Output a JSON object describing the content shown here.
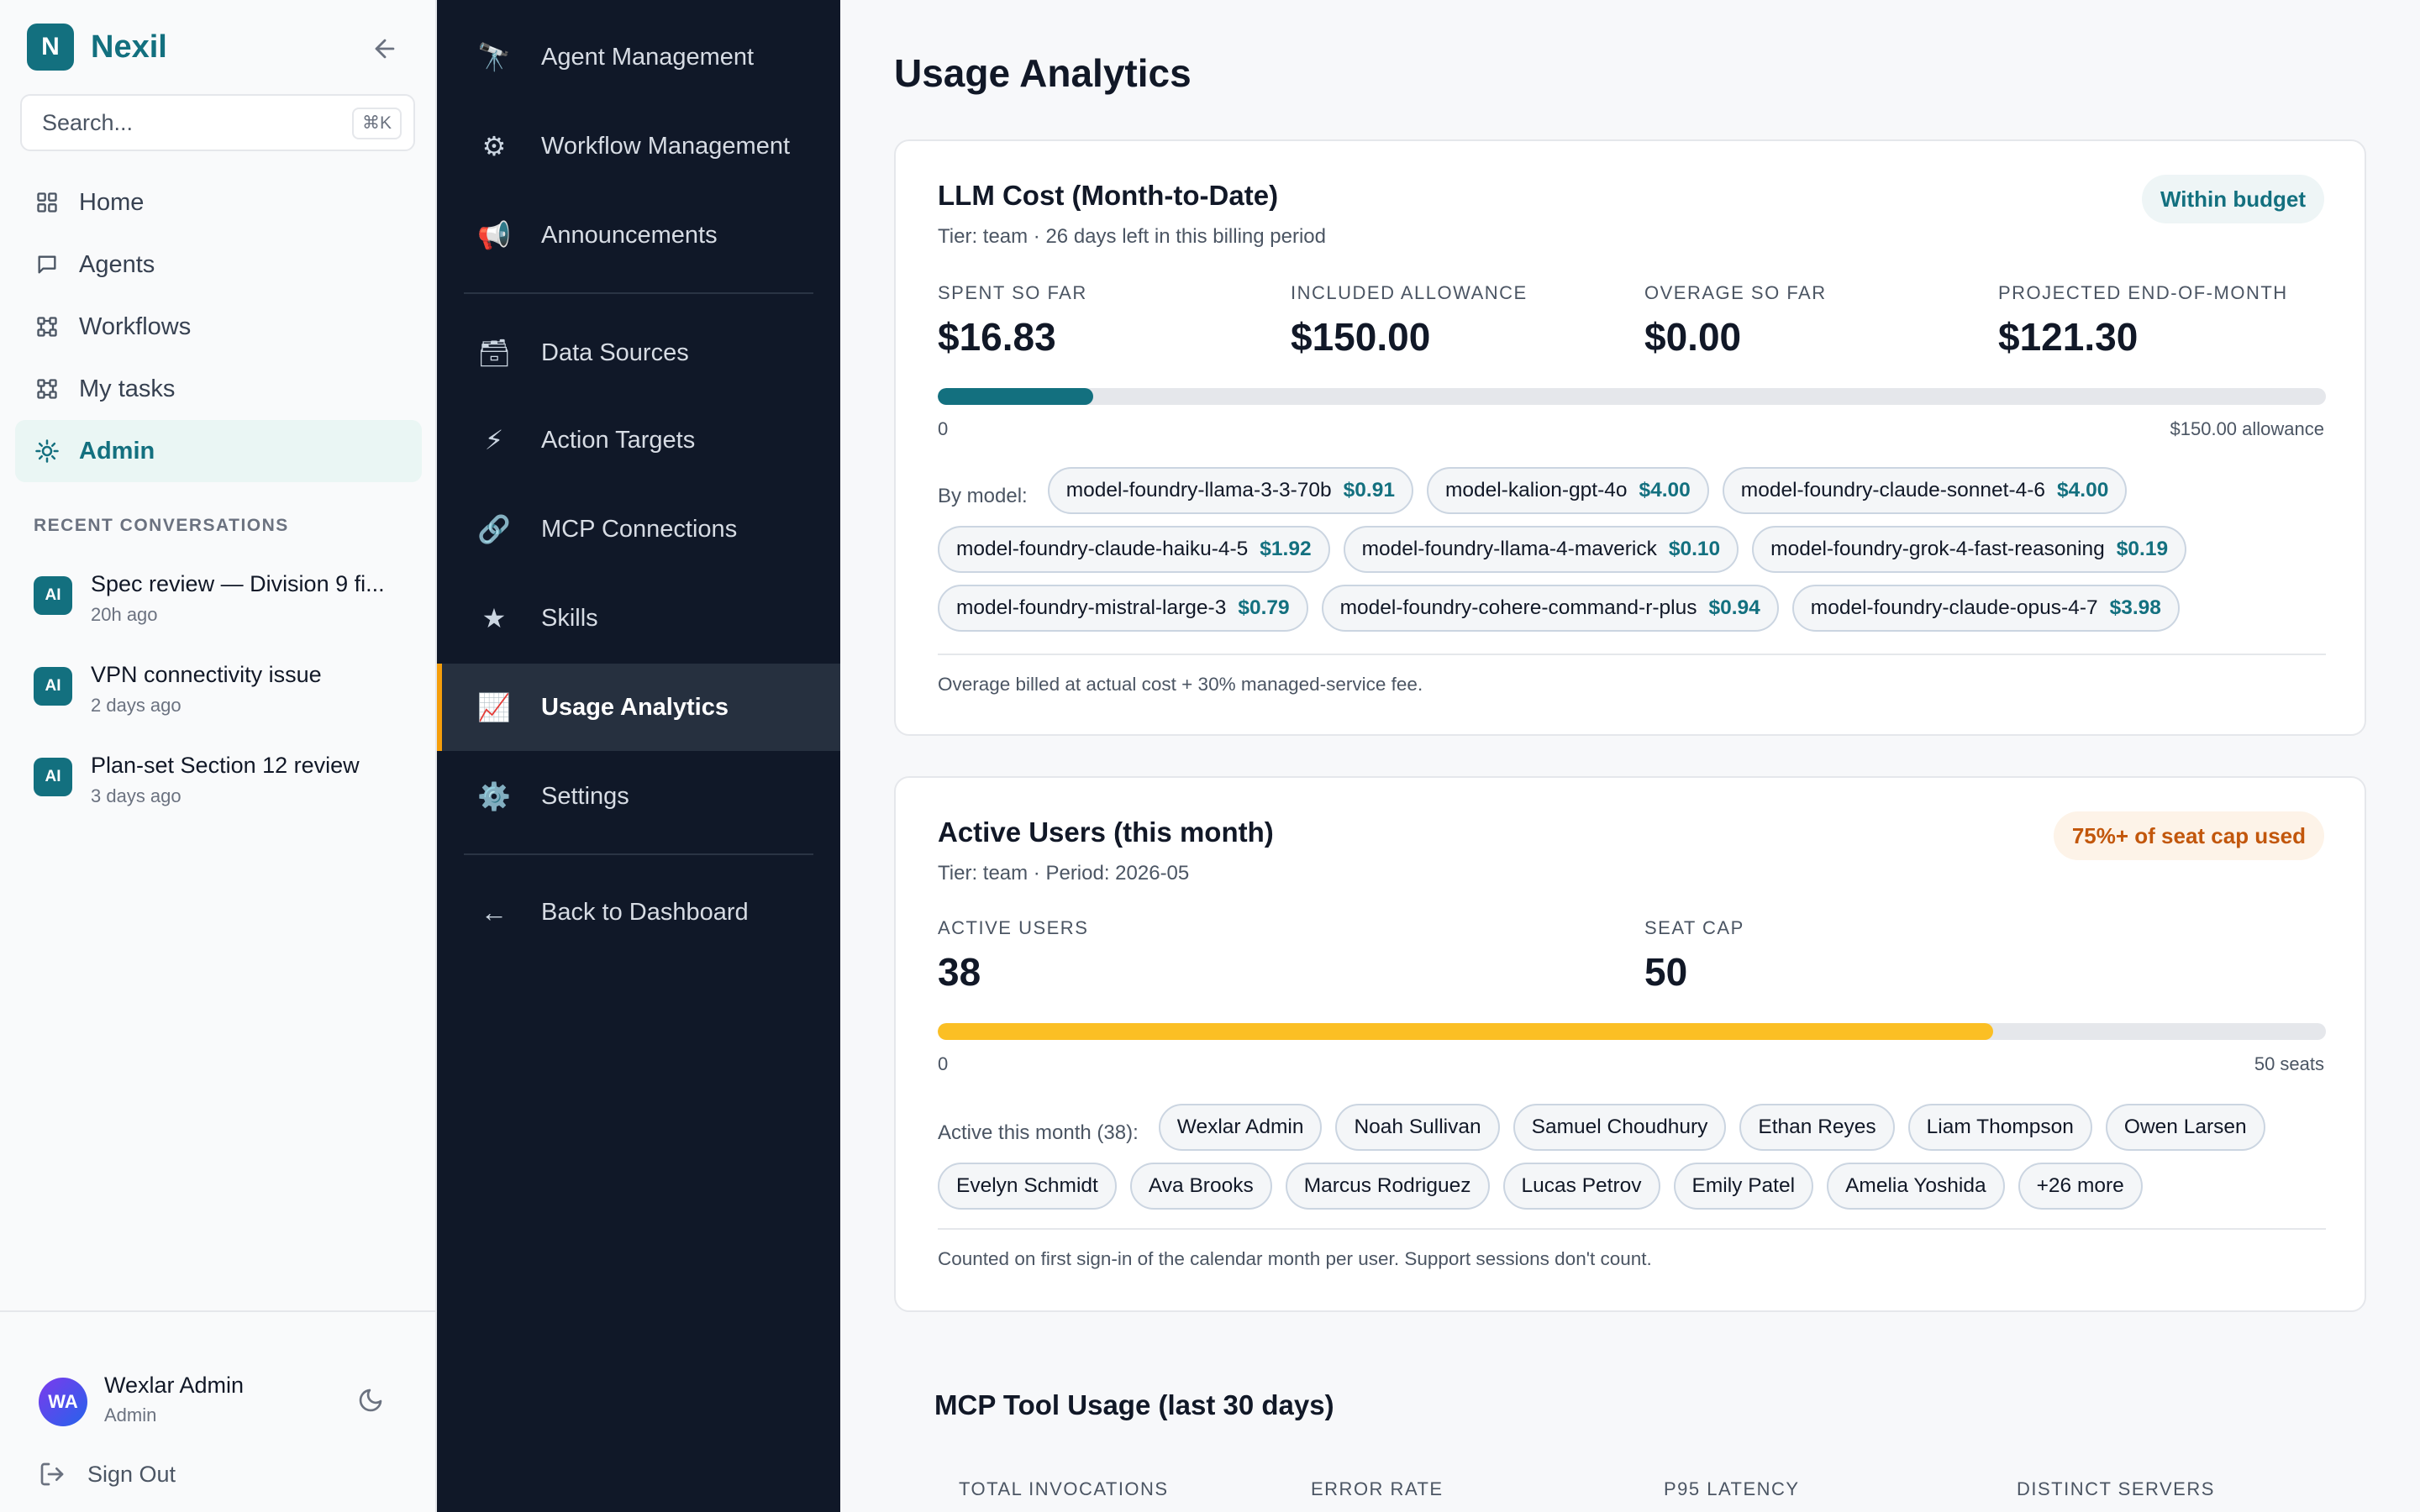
{
  "brand": {
    "logo_letter": "N",
    "name": "Nexil",
    "accent": "#13707f"
  },
  "search": {
    "placeholder": "Search...",
    "shortcut": "⌘K"
  },
  "nav": {
    "items": [
      {
        "label": "Home",
        "icon": "grid-icon"
      },
      {
        "label": "Agents",
        "icon": "chat-bubble-icon"
      },
      {
        "label": "Workflows",
        "icon": "workflow-icon"
      },
      {
        "label": "My tasks",
        "icon": "tasks-icon"
      },
      {
        "label": "Admin",
        "icon": "sun-gear-icon",
        "active": true
      }
    ]
  },
  "recent": {
    "label": "RECENT CONVERSATIONS",
    "items": [
      {
        "badge": "AI",
        "title": "Spec review — Division 9 fi...",
        "time": "20h ago"
      },
      {
        "badge": "AI",
        "title": "VPN connectivity issue",
        "time": "2 days ago"
      },
      {
        "badge": "AI",
        "title": "Plan-set Section 12 review",
        "time": "3 days ago"
      }
    ]
  },
  "user": {
    "initials": "WA",
    "name": "Wexlar Admin",
    "role": "Admin",
    "signout": "Sign Out"
  },
  "admin_nav": {
    "items": [
      {
        "icon": "🔭",
        "label": "Agent Management"
      },
      {
        "icon": "⚙",
        "label": "Workflow Management"
      },
      {
        "icon": "📢",
        "label": "Announcements"
      },
      {
        "icon": "🗃",
        "label": "Data Sources"
      },
      {
        "icon": "⚡",
        "label": "Action Targets"
      },
      {
        "icon": "🔗",
        "label": "MCP Connections"
      },
      {
        "icon": "★",
        "label": "Skills"
      },
      {
        "icon": "📈",
        "label": "Usage Analytics",
        "active": true
      },
      {
        "icon": "⚙️",
        "label": "Settings"
      },
      {
        "icon": "←",
        "label": "Back to Dashboard"
      }
    ]
  },
  "page": {
    "title": "Usage Analytics"
  },
  "llm_cost": {
    "title": "LLM Cost (Month-to-Date)",
    "subtitle": "Tier: team · 26 days left in this billing period",
    "status": "Within budget",
    "metrics": [
      {
        "label": "SPENT SO FAR",
        "value": "$16.83"
      },
      {
        "label": "INCLUDED ALLOWANCE",
        "value": "$150.00"
      },
      {
        "label": "OVERAGE SO FAR",
        "value": "$0.00"
      },
      {
        "label": "PROJECTED END-OF-MONTH",
        "value": "$121.30"
      }
    ],
    "progress_fraction": 0.1122,
    "bar_color": "#13707f",
    "bar_min": "0",
    "bar_max": "$150.00 allowance",
    "by_model_label": "By model:",
    "models": [
      {
        "name": "model-foundry-llama-3-3-70b",
        "cost": "$0.91"
      },
      {
        "name": "model-kalion-gpt-4o",
        "cost": "$4.00"
      },
      {
        "name": "model-foundry-claude-sonnet-4-6",
        "cost": "$4.00"
      },
      {
        "name": "model-foundry-claude-haiku-4-5",
        "cost": "$1.92"
      },
      {
        "name": "model-foundry-llama-4-maverick",
        "cost": "$0.10"
      },
      {
        "name": "model-foundry-grok-4-fast-reasoning",
        "cost": "$0.19"
      },
      {
        "name": "model-foundry-mistral-large-3",
        "cost": "$0.79"
      },
      {
        "name": "model-foundry-cohere-command-r-plus",
        "cost": "$0.94"
      },
      {
        "name": "model-foundry-claude-opus-4-7",
        "cost": "$3.98"
      }
    ],
    "note": "Overage billed at actual cost + 30% managed-service fee."
  },
  "active_users": {
    "title": "Active Users (this month)",
    "subtitle": "Tier: team · Period: 2026-05",
    "status": "75%+ of seat cap used",
    "metrics": [
      {
        "label": "ACTIVE USERS",
        "value": "38"
      },
      {
        "label": "SEAT CAP",
        "value": "50"
      }
    ],
    "progress_fraction": 0.76,
    "bar_color": "#fbbf24",
    "bar_min": "0",
    "bar_max": "50 seats",
    "list_label": "Active this month (38):",
    "users": [
      "Wexlar Admin",
      "Noah Sullivan",
      "Samuel Choudhury",
      "Ethan Reyes",
      "Liam Thompson",
      "Owen Larsen",
      "Evelyn Schmidt",
      "Ava Brooks",
      "Marcus Rodriguez",
      "Lucas Petrov",
      "Emily Patel",
      "Amelia Yoshida",
      "+26 more"
    ],
    "note": "Counted on first sign-in of the calendar month per user. Support sessions don't count."
  },
  "mcp_usage": {
    "title": "MCP Tool Usage (last 30 days)",
    "metric_labels": [
      "TOTAL INVOCATIONS",
      "ERROR RATE",
      "P95 LATENCY",
      "DISTINCT SERVERS"
    ]
  }
}
